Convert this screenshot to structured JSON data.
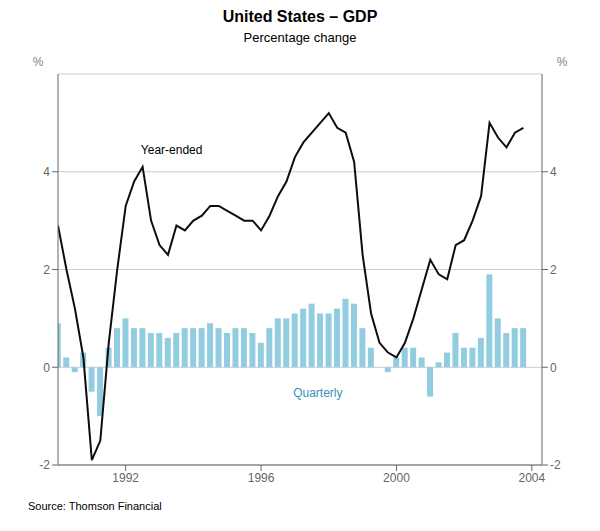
{
  "chart_data": {
    "type": "bar",
    "title": "United States – GDP",
    "subtitle": "Percentage change",
    "source": "Source: Thomson Financial",
    "y_label": "%",
    "y2_label": "%",
    "x": [
      1990,
      1990.25,
      1990.5,
      1990.75,
      1991,
      1991.25,
      1991.5,
      1991.75,
      1992,
      1992.25,
      1992.5,
      1992.75,
      1993,
      1993.25,
      1993.5,
      1993.75,
      1994,
      1994.25,
      1994.5,
      1994.75,
      1995,
      1995.25,
      1995.5,
      1995.75,
      1996,
      1996.25,
      1996.5,
      1996.75,
      1997,
      1997.25,
      1997.5,
      1997.75,
      1998,
      1998.25,
      1998.5,
      1998.75,
      1999,
      1999.25,
      1999.5,
      1999.75,
      2000,
      2000.25,
      2000.5,
      2000.75,
      2001,
      2001.25,
      2001.5,
      2001.75,
      2002,
      2002.25,
      2002.5,
      2002.75,
      2003,
      2003.25,
      2003.5,
      2003.75
    ],
    "series": [
      {
        "type": "bar",
        "color": "#92cce0",
        "values": [
          0.9,
          0.2,
          -0.1,
          0.3,
          -0.5,
          -1.0,
          0.4,
          0.8,
          1.0,
          0.8,
          0.8,
          0.7,
          0.7,
          0.6,
          0.7,
          0.8,
          0.8,
          0.8,
          0.9,
          0.8,
          0.7,
          0.8,
          0.8,
          0.7,
          0.5,
          0.8,
          1.0,
          1.0,
          1.1,
          1.2,
          1.3,
          1.1,
          1.1,
          1.2,
          1.4,
          1.3,
          0.8,
          0.4,
          0.0,
          -0.1,
          0.2,
          0.4,
          0.4,
          0.2,
          -0.6,
          0.1,
          0.3,
          0.7,
          0.4,
          0.4,
          0.6,
          1.9,
          1.0,
          0.7,
          0.8,
          0.8
        ]
      },
      {
        "type": "line",
        "color": "#0d0d0d",
        "values": [
          2.9,
          2.0,
          1.2,
          0.2,
          -1.9,
          -1.5,
          0.5,
          2.0,
          3.3,
          3.8,
          4.1,
          3.0,
          2.5,
          2.3,
          2.9,
          2.8,
          3.0,
          3.1,
          3.3,
          3.3,
          3.2,
          3.1,
          3.0,
          3.0,
          2.8,
          3.1,
          3.5,
          3.8,
          4.3,
          4.6,
          4.8,
          5.0,
          5.2,
          4.9,
          4.8,
          4.2,
          2.3,
          1.1,
          0.5,
          0.3,
          0.2,
          0.5,
          1.0,
          1.6,
          2.2,
          1.9,
          1.8,
          2.5,
          2.6,
          3.0,
          3.5,
          5.0,
          4.7,
          4.5,
          4.8,
          4.9
        ]
      }
    ],
    "annotations": [
      {
        "text": "Year-ended",
        "x": 1992.3,
        "y": 4.45,
        "color": "#000000"
      },
      {
        "text": "Quarterly",
        "x": 1996.8,
        "y": -0.52,
        "color": "#3a8fbe"
      }
    ],
    "xlim": [
      1990.0,
      2004.3
    ],
    "xticks": [
      1992,
      1996,
      2000,
      2004
    ],
    "ylim": [
      -2,
      6
    ],
    "yticks": [
      -2,
      0,
      2,
      4
    ],
    "y2lim": [
      -2,
      6
    ],
    "y2ticks": [
      -2,
      0,
      2,
      4
    ],
    "grid": true
  }
}
